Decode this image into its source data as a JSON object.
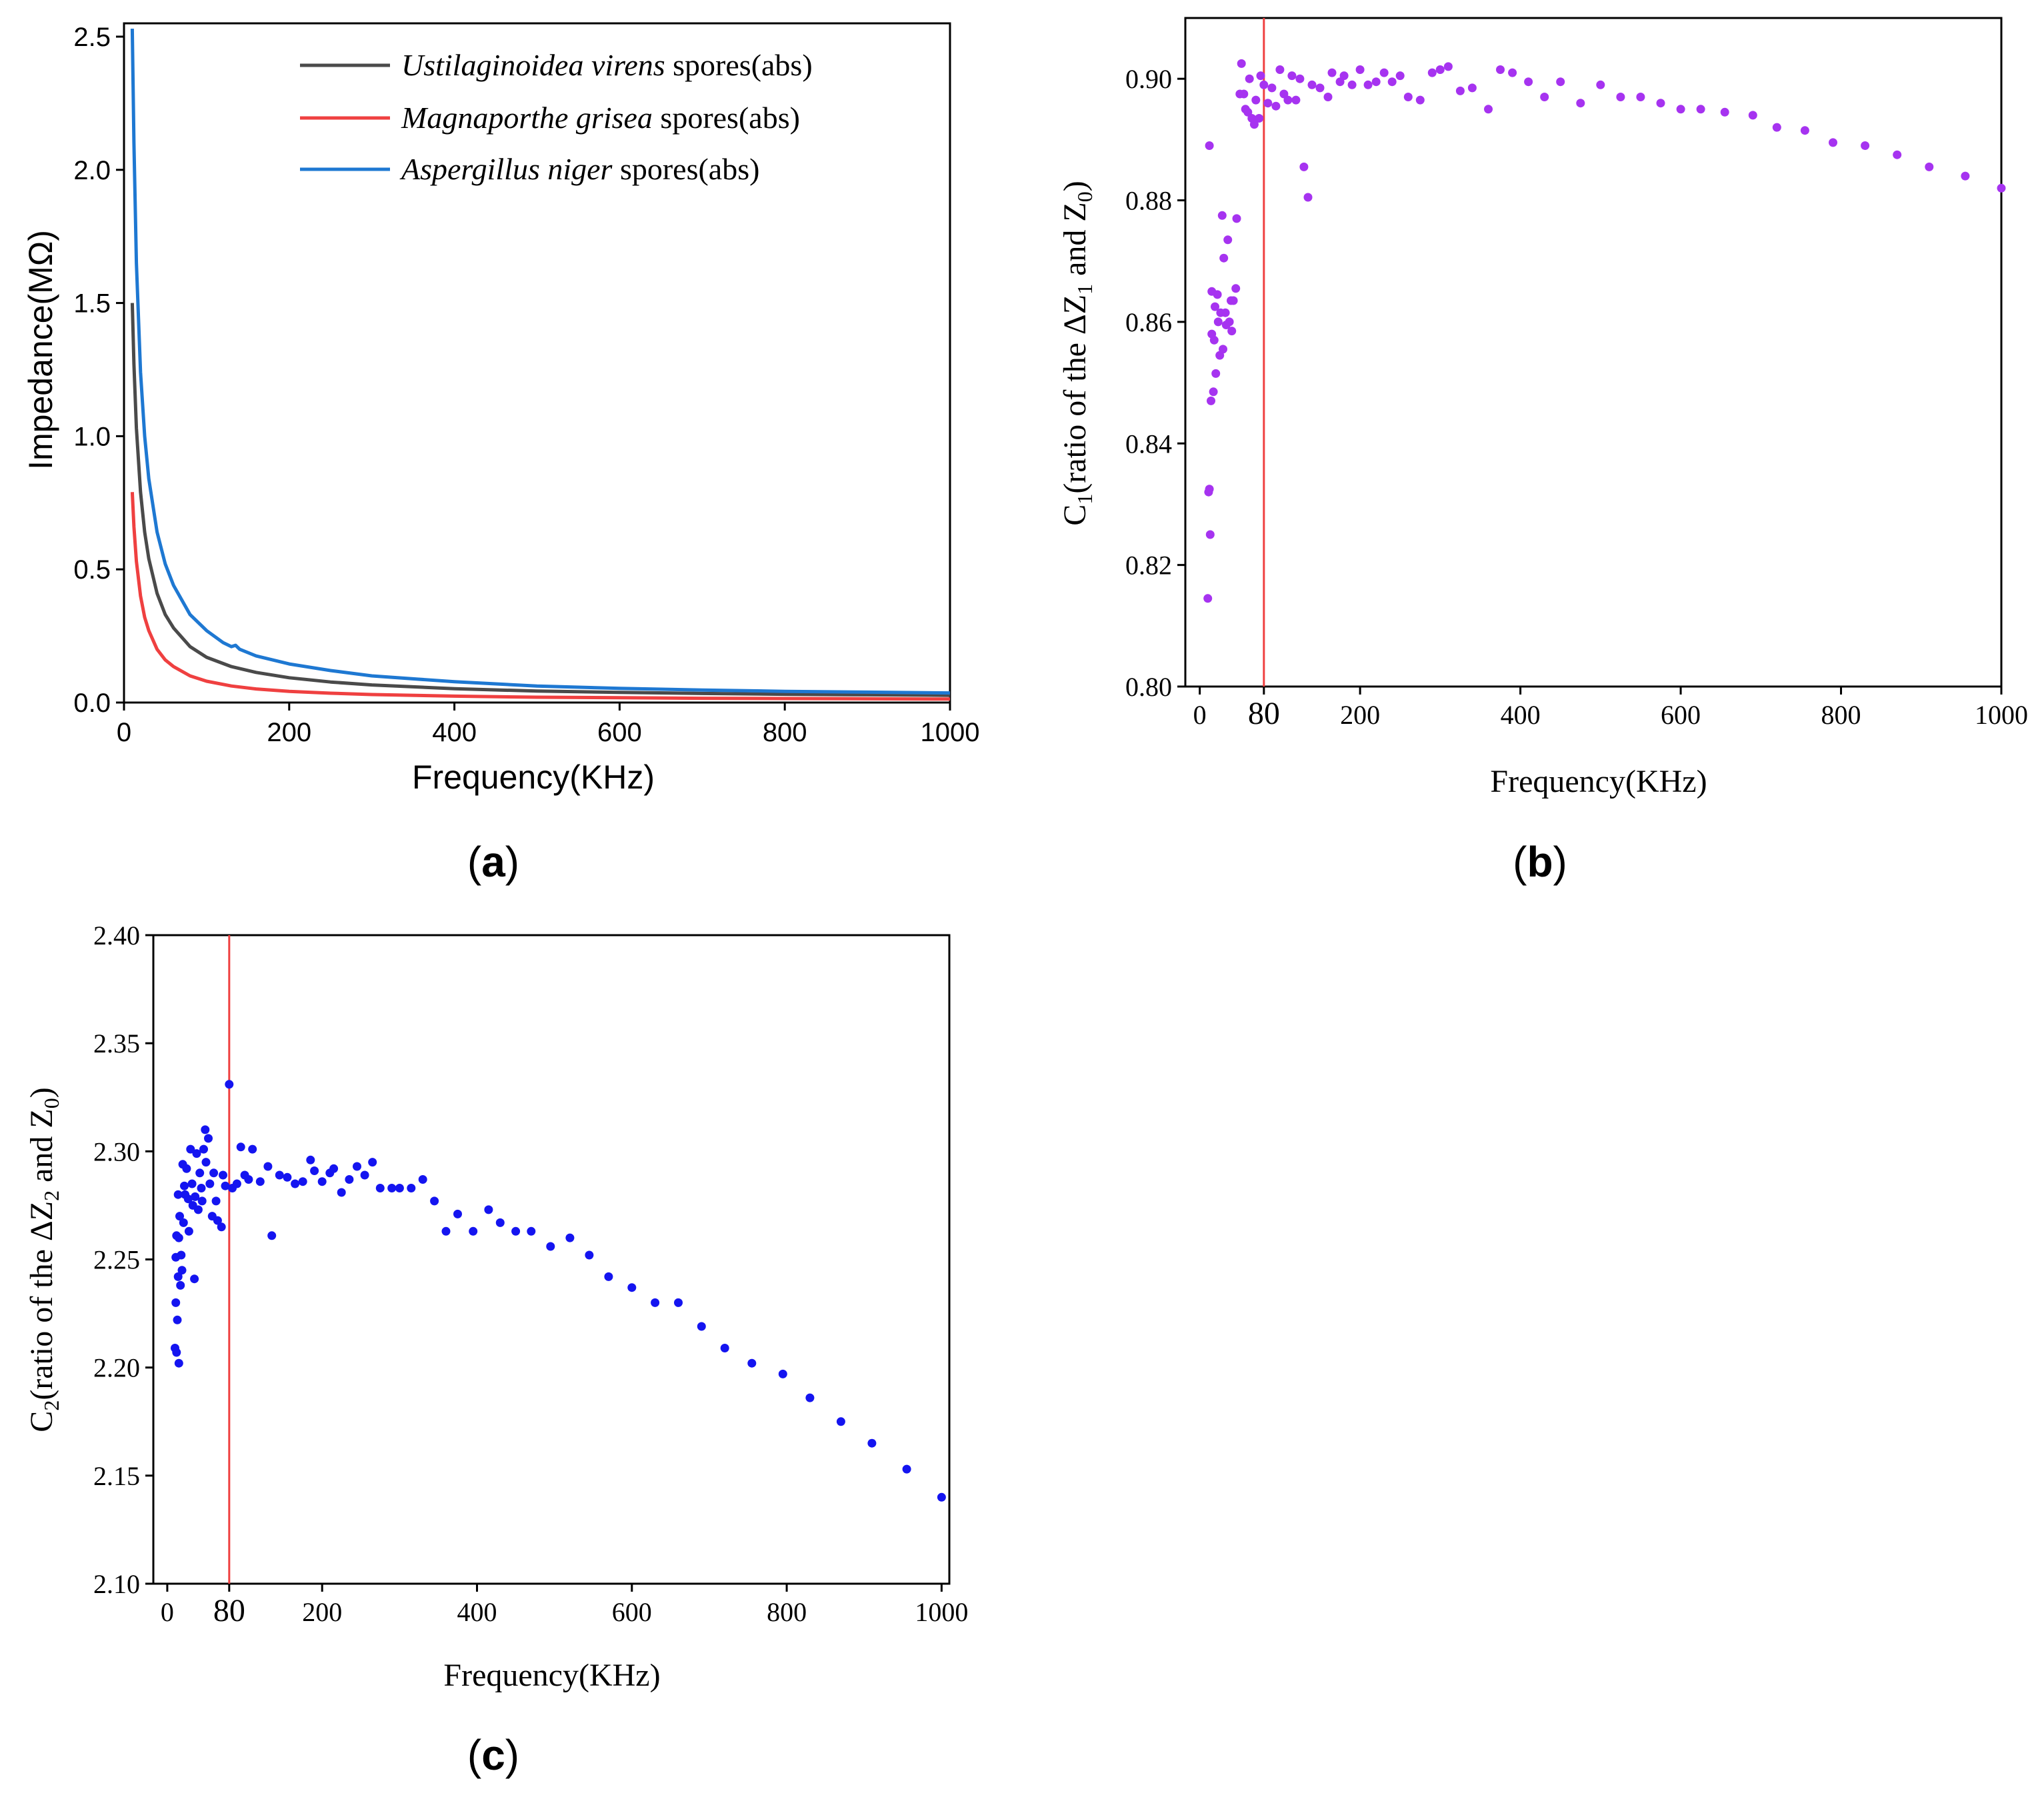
{
  "chart_data": [
    {
      "panel": "(a)",
      "type": "line",
      "title": "",
      "xlabel": "Frequency(KHz)",
      "ylabel": "Impedance(MΩ)",
      "xlim": [
        0,
        1000
      ],
      "ylim": [
        0,
        2.55
      ],
      "xticks": [
        0,
        200,
        400,
        600,
        800,
        1000
      ],
      "yticks": [
        0.0,
        0.5,
        1.0,
        1.5,
        2.0,
        2.5
      ],
      "ytick_labels": [
        "0.0",
        "0.5",
        "1.0",
        "1.5",
        "2.0",
        "2.5"
      ],
      "legend_position": "top-right",
      "series": [
        {
          "name_italic": "Ustilaginoidea virens",
          "name_suffix": " spores(abs)",
          "color": "#4a4a4a",
          "x": [
            10,
            12,
            15,
            20,
            25,
            30,
            40,
            50,
            60,
            80,
            100,
            130,
            160,
            200,
            250,
            300,
            400,
            500,
            600,
            700,
            800,
            900,
            1000
          ],
          "y": [
            1.5,
            1.27,
            1.03,
            0.79,
            0.64,
            0.54,
            0.41,
            0.33,
            0.28,
            0.21,
            0.17,
            0.135,
            0.113,
            0.093,
            0.077,
            0.066,
            0.052,
            0.043,
            0.038,
            0.034,
            0.031,
            0.029,
            0.027
          ]
        },
        {
          "name_italic": "Magnaporthe grisea",
          "name_suffix": " spores(abs)",
          "color": "#ef4040",
          "x": [
            10,
            12,
            15,
            20,
            25,
            30,
            40,
            50,
            60,
            80,
            100,
            130,
            160,
            200,
            250,
            300,
            400,
            500,
            600,
            700,
            800,
            900,
            1000
          ],
          "y": [
            0.79,
            0.66,
            0.53,
            0.4,
            0.32,
            0.27,
            0.2,
            0.16,
            0.135,
            0.1,
            0.08,
            0.062,
            0.051,
            0.042,
            0.035,
            0.03,
            0.024,
            0.02,
            0.018,
            0.016,
            0.015,
            0.014,
            0.013
          ]
        },
        {
          "name_italic": "Aspergillus niger",
          "name_suffix": " spores(abs)",
          "color": "#1e78d2",
          "x": [
            10,
            12,
            15,
            20,
            25,
            30,
            40,
            50,
            60,
            80,
            100,
            120,
            130,
            135,
            140,
            160,
            200,
            250,
            300,
            400,
            500,
            600,
            700,
            800,
            900,
            1000
          ],
          "y": [
            2.53,
            2.1,
            1.65,
            1.24,
            1.0,
            0.84,
            0.64,
            0.52,
            0.44,
            0.33,
            0.27,
            0.225,
            0.21,
            0.215,
            0.2,
            0.175,
            0.145,
            0.12,
            0.1,
            0.078,
            0.062,
            0.053,
            0.047,
            0.042,
            0.039,
            0.036
          ]
        }
      ],
      "legend_labels": [
        "Ustilaginoidea virens spores(abs)",
        "Magnaporthe grisea spores(abs)",
        "Aspergillus niger spores(abs)"
      ]
    },
    {
      "panel": "(b)",
      "type": "scatter",
      "title": "",
      "xlabel": "Frequency(KHz)",
      "ylabel": "C1(ratio of the ΔZ1 and Z0)",
      "xlim": [
        -18,
        1000
      ],
      "ylim": [
        0.8,
        0.91
      ],
      "xticks": [
        0,
        80,
        200,
        400,
        600,
        800,
        1000
      ],
      "yticks": [
        0.8,
        0.82,
        0.84,
        0.86,
        0.88,
        0.9
      ],
      "ytick_labels": [
        "0.80",
        "0.82",
        "0.84",
        "0.86",
        "0.88",
        "0.90"
      ],
      "vline_x": 80,
      "vline_color": "#ef4040",
      "point_color": "#a633f0",
      "points": [
        [
          10,
          0.8145
        ],
        [
          11,
          0.832
        ],
        [
          12,
          0.8325
        ],
        [
          12,
          0.889
        ],
        [
          13,
          0.825
        ],
        [
          14,
          0.847
        ],
        [
          15,
          0.858
        ],
        [
          15,
          0.865
        ],
        [
          17,
          0.8485
        ],
        [
          18,
          0.857
        ],
        [
          19,
          0.8625
        ],
        [
          20,
          0.8515
        ],
        [
          22,
          0.8645
        ],
        [
          23,
          0.86
        ],
        [
          25,
          0.8545
        ],
        [
          26,
          0.8615
        ],
        [
          28,
          0.8775
        ],
        [
          29,
          0.8555
        ],
        [
          30,
          0.8705
        ],
        [
          32,
          0.8615
        ],
        [
          33,
          0.8595
        ],
        [
          35,
          0.8735
        ],
        [
          37,
          0.86
        ],
        [
          39,
          0.8635
        ],
        [
          40,
          0.8585
        ],
        [
          42,
          0.8635
        ],
        [
          45,
          0.8655
        ],
        [
          46,
          0.877
        ],
        [
          50,
          0.8975
        ],
        [
          52,
          0.9025
        ],
        [
          55,
          0.8975
        ],
        [
          57,
          0.895
        ],
        [
          60,
          0.8945
        ],
        [
          62,
          0.9
        ],
        [
          65,
          0.8935
        ],
        [
          68,
          0.8925
        ],
        [
          70,
          0.8965
        ],
        [
          74,
          0.8935
        ],
        [
          76,
          0.9005
        ],
        [
          80,
          0.899
        ],
        [
          85,
          0.896
        ],
        [
          90,
          0.8985
        ],
        [
          95,
          0.8955
        ],
        [
          100,
          0.9015
        ],
        [
          105,
          0.8975
        ],
        [
          110,
          0.8965
        ],
        [
          115,
          0.9005
        ],
        [
          120,
          0.8965
        ],
        [
          125,
          0.9
        ],
        [
          130,
          0.8855
        ],
        [
          135,
          0.8805
        ],
        [
          140,
          0.899
        ],
        [
          150,
          0.8985
        ],
        [
          160,
          0.897
        ],
        [
          165,
          0.901
        ],
        [
          175,
          0.8995
        ],
        [
          180,
          0.9005
        ],
        [
          190,
          0.899
        ],
        [
          200,
          0.9015
        ],
        [
          210,
          0.899
        ],
        [
          220,
          0.8995
        ],
        [
          230,
          0.901
        ],
        [
          240,
          0.8995
        ],
        [
          250,
          0.9005
        ],
        [
          260,
          0.897
        ],
        [
          275,
          0.8965
        ],
        [
          290,
          0.901
        ],
        [
          300,
          0.9015
        ],
        [
          310,
          0.902
        ],
        [
          325,
          0.898
        ],
        [
          340,
          0.8985
        ],
        [
          360,
          0.895
        ],
        [
          375,
          0.9015
        ],
        [
          390,
          0.901
        ],
        [
          410,
          0.8995
        ],
        [
          430,
          0.897
        ],
        [
          450,
          0.8995
        ],
        [
          475,
          0.896
        ],
        [
          500,
          0.899
        ],
        [
          525,
          0.897
        ],
        [
          550,
          0.897
        ],
        [
          575,
          0.896
        ],
        [
          600,
          0.895
        ],
        [
          625,
          0.895
        ],
        [
          655,
          0.8945
        ],
        [
          690,
          0.894
        ],
        [
          720,
          0.892
        ],
        [
          755,
          0.8915
        ],
        [
          790,
          0.8895
        ],
        [
          830,
          0.889
        ],
        [
          870,
          0.8875
        ],
        [
          910,
          0.8855
        ],
        [
          955,
          0.884
        ],
        [
          1000,
          0.882
        ]
      ]
    },
    {
      "panel": "(c)",
      "type": "scatter",
      "title": "",
      "xlabel": "Frequency(KHz)",
      "ylabel": "C2(ratio of the ΔZ2 and Z0)",
      "xlim": [
        -18,
        1010
      ],
      "ylim": [
        2.1,
        2.4
      ],
      "xticks": [
        0,
        80,
        200,
        400,
        600,
        800,
        1000
      ],
      "yticks": [
        2.1,
        2.15,
        2.2,
        2.25,
        2.3,
        2.35,
        2.4
      ],
      "ytick_labels": [
        "2.10",
        "2.15",
        "2.20",
        "2.25",
        "2.30",
        "2.35",
        "2.40"
      ],
      "vline_x": 80,
      "vline_color": "#ef4040",
      "point_color": "#1414f0",
      "points": [
        [
          10,
          2.209
        ],
        [
          11,
          2.23
        ],
        [
          11,
          2.251
        ],
        [
          12,
          2.207
        ],
        [
          12,
          2.261
        ],
        [
          13,
          2.222
        ],
        [
          14,
          2.242
        ],
        [
          14,
          2.28
        ],
        [
          15,
          2.26
        ],
        [
          15,
          2.202
        ],
        [
          16,
          2.27
        ],
        [
          17,
          2.238
        ],
        [
          18,
          2.252
        ],
        [
          19,
          2.245
        ],
        [
          20,
          2.294
        ],
        [
          21,
          2.267
        ],
        [
          22,
          2.284
        ],
        [
          23,
          2.28
        ],
        [
          25,
          2.292
        ],
        [
          27,
          2.278
        ],
        [
          28,
          2.263
        ],
        [
          30,
          2.301
        ],
        [
          32,
          2.285
        ],
        [
          33,
          2.275
        ],
        [
          35,
          2.241
        ],
        [
          36,
          2.279
        ],
        [
          38,
          2.299
        ],
        [
          40,
          2.273
        ],
        [
          42,
          2.29
        ],
        [
          44,
          2.283
        ],
        [
          45,
          2.277
        ],
        [
          47,
          2.301
        ],
        [
          49,
          2.31
        ],
        [
          50,
          2.295
        ],
        [
          53,
          2.306
        ],
        [
          55,
          2.285
        ],
        [
          58,
          2.27
        ],
        [
          60,
          2.29
        ],
        [
          63,
          2.277
        ],
        [
          65,
          2.268
        ],
        [
          70,
          2.265
        ],
        [
          72,
          2.289
        ],
        [
          75,
          2.284
        ],
        [
          80,
          2.331
        ],
        [
          84,
          2.283
        ],
        [
          90,
          2.285
        ],
        [
          95,
          2.302
        ],
        [
          100,
          2.289
        ],
        [
          105,
          2.287
        ],
        [
          110,
          2.301
        ],
        [
          120,
          2.286
        ],
        [
          130,
          2.293
        ],
        [
          135,
          2.261
        ],
        [
          145,
          2.289
        ],
        [
          155,
          2.288
        ],
        [
          165,
          2.285
        ],
        [
          175,
          2.286
        ],
        [
          185,
          2.296
        ],
        [
          190,
          2.291
        ],
        [
          200,
          2.286
        ],
        [
          210,
          2.29
        ],
        [
          215,
          2.292
        ],
        [
          225,
          2.281
        ],
        [
          235,
          2.287
        ],
        [
          245,
          2.293
        ],
        [
          255,
          2.289
        ],
        [
          265,
          2.295
        ],
        [
          275,
          2.283
        ],
        [
          290,
          2.283
        ],
        [
          300,
          2.283
        ],
        [
          315,
          2.283
        ],
        [
          330,
          2.287
        ],
        [
          345,
          2.277
        ],
        [
          360,
          2.263
        ],
        [
          375,
          2.271
        ],
        [
          395,
          2.263
        ],
        [
          415,
          2.273
        ],
        [
          430,
          2.267
        ],
        [
          450,
          2.263
        ],
        [
          470,
          2.263
        ],
        [
          495,
          2.256
        ],
        [
          520,
          2.26
        ],
        [
          545,
          2.252
        ],
        [
          570,
          2.242
        ],
        [
          600,
          2.237
        ],
        [
          630,
          2.23
        ],
        [
          660,
          2.23
        ],
        [
          690,
          2.219
        ],
        [
          720,
          2.209
        ],
        [
          755,
          2.202
        ],
        [
          795,
          2.197
        ],
        [
          830,
          2.186
        ],
        [
          870,
          2.175
        ],
        [
          910,
          2.165
        ],
        [
          955,
          2.153
        ],
        [
          1000,
          2.14
        ]
      ]
    }
  ],
  "labels": {
    "panel_a": "(a)",
    "panel_b": "(b)",
    "panel_c": "(c)",
    "legend_suffix": " spores(abs)",
    "b_ylabel": {
      "pre": "C",
      "sub1": "1",
      "mid": "(ratio of the ΔZ",
      "sub2": "1",
      "mid2": " and Z",
      "sub3": "0",
      "post": ")"
    },
    "c_ylabel": {
      "pre": "C",
      "sub1": "2",
      "mid": "(ratio of the ΔZ",
      "sub2": "2",
      "mid2": " and Z",
      "sub3": "0",
      "post": ")"
    }
  },
  "colors": {
    "axis": "#000000",
    "background": "#ffffff"
  }
}
